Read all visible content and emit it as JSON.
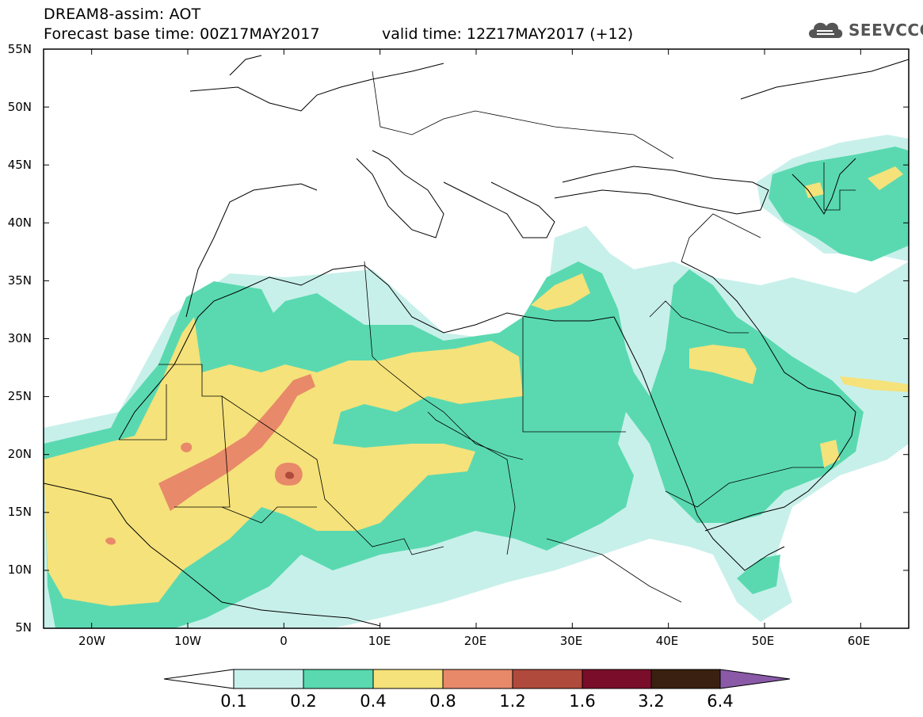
{
  "title": {
    "line1": "DREAM8-assim: AOT",
    "line2": "Forecast base time: 00Z17MAY2017",
    "valid": "valid time: 12Z17MAY2017 (+12)"
  },
  "logo": {
    "text": "SEEVCCC",
    "icon": "cloud-icon",
    "color": "#555555"
  },
  "map": {
    "projection": "lat-lon",
    "lon_range": [
      -25,
      65
    ],
    "lat_range": [
      5,
      55
    ],
    "lat_labels": [
      "55N",
      "50N",
      "45N",
      "40N",
      "35N",
      "30N",
      "25N",
      "20N",
      "15N",
      "10N",
      "5N"
    ],
    "lon_labels": [
      "20W",
      "10W",
      "0",
      "10E",
      "20E",
      "30E",
      "40E",
      "50E",
      "60E"
    ]
  },
  "colorbar": {
    "labels": [
      "0.1",
      "0.2",
      "0.4",
      "0.8",
      "1.2",
      "1.6",
      "3.2",
      "6.4"
    ],
    "colors": [
      "#ffffff",
      "#c8f0ea",
      "#5ad9b0",
      "#f5e27a",
      "#e8896a",
      "#b04a3c",
      "#7a0d2a",
      "#3a2010",
      "#8a5aa8"
    ]
  },
  "chart_data": {
    "type": "heatmap",
    "title": "DREAM8-assim: AOT",
    "variable": "AOT",
    "xlabel": "",
    "ylabel": "",
    "xlim": [
      -25,
      65
    ],
    "ylim": [
      5,
      55
    ],
    "levels": [
      0.1,
      0.2,
      0.4,
      0.8,
      1.2,
      1.6,
      3.2,
      6.4
    ]
  }
}
